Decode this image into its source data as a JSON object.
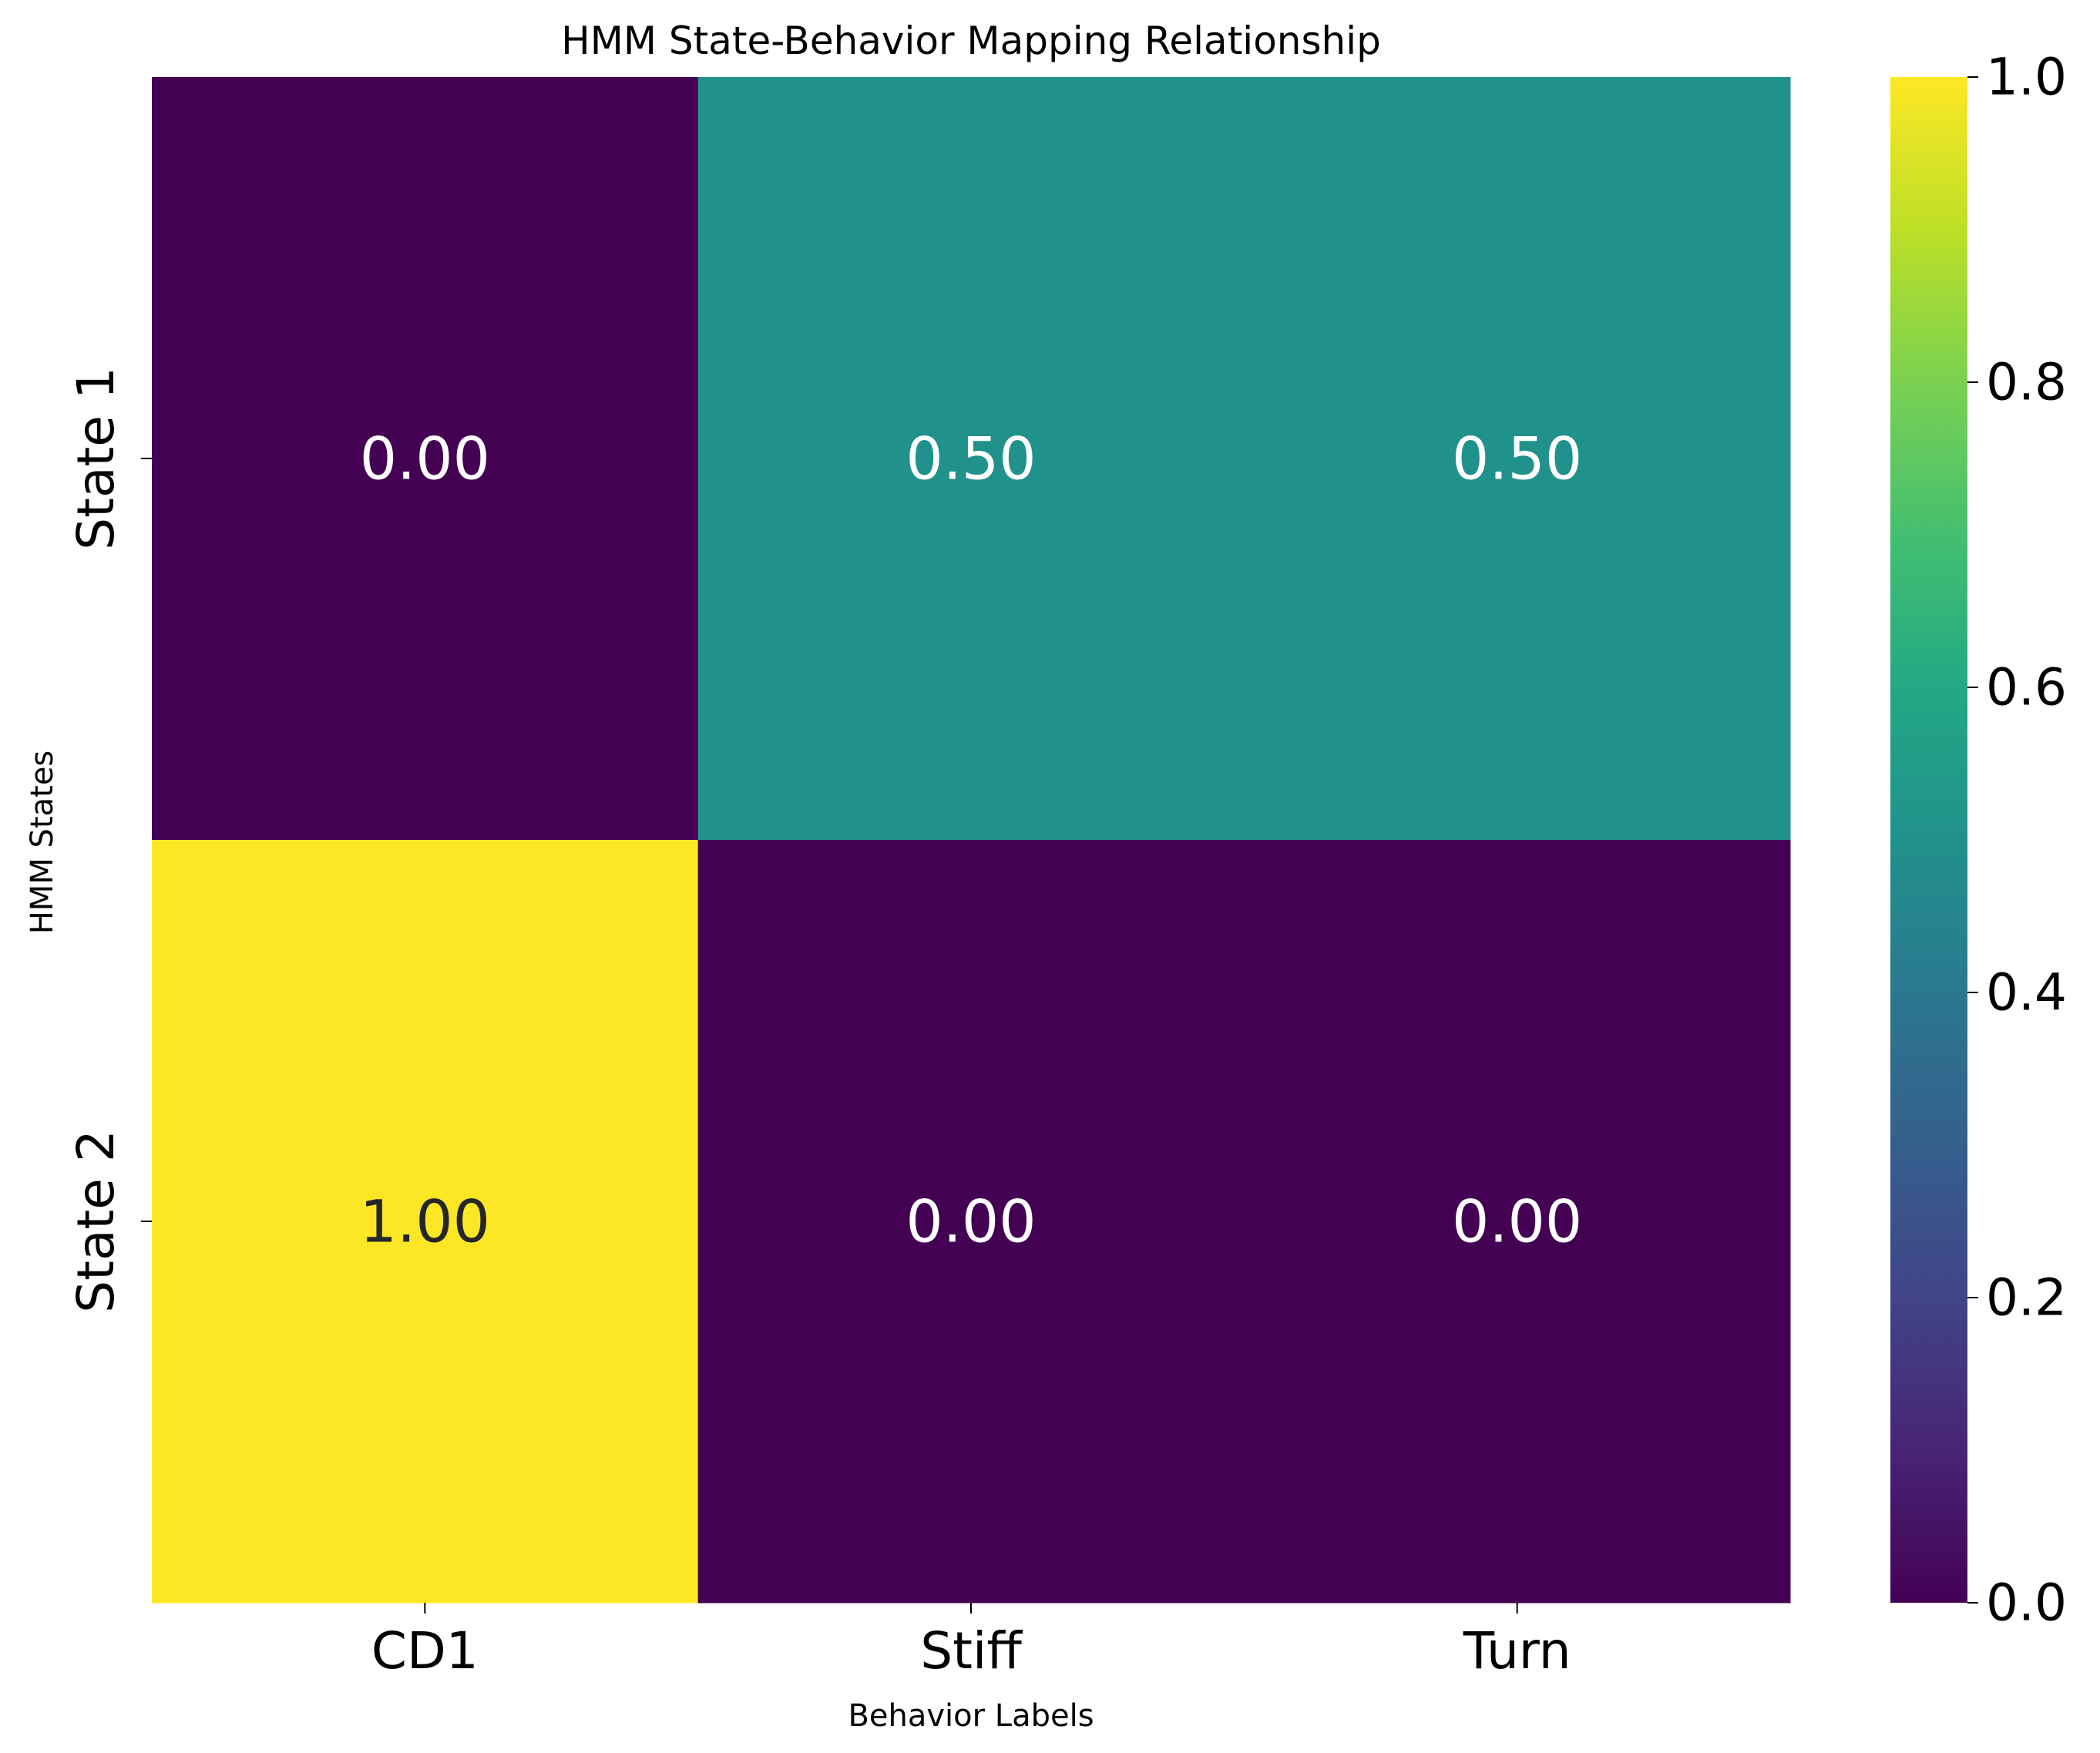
{
  "chart_data": {
    "type": "heatmap",
    "title": "HMM State-Behavior Mapping Relationship",
    "xlabel": "Behavior Labels",
    "ylabel": "HMM States",
    "x_categories": [
      "CD1",
      "Stiff",
      "Turn"
    ],
    "y_categories": [
      "State 1",
      "State 2"
    ],
    "values": [
      [
        0.0,
        0.5,
        0.5
      ],
      [
        1.0,
        0.0,
        0.0
      ]
    ],
    "value_labels": [
      [
        "0.00",
        "0.50",
        "0.50"
      ],
      [
        "1.00",
        "0.00",
        "0.00"
      ]
    ],
    "colormap": "viridis",
    "colorbar": {
      "range": [
        0.0,
        1.0
      ],
      "ticks": [
        0.0,
        0.2,
        0.4,
        0.6,
        0.8,
        1.0
      ],
      "tick_labels": [
        "0.0",
        "0.2",
        "0.4",
        "0.6",
        "0.8",
        "1.0"
      ]
    },
    "grid": false
  }
}
